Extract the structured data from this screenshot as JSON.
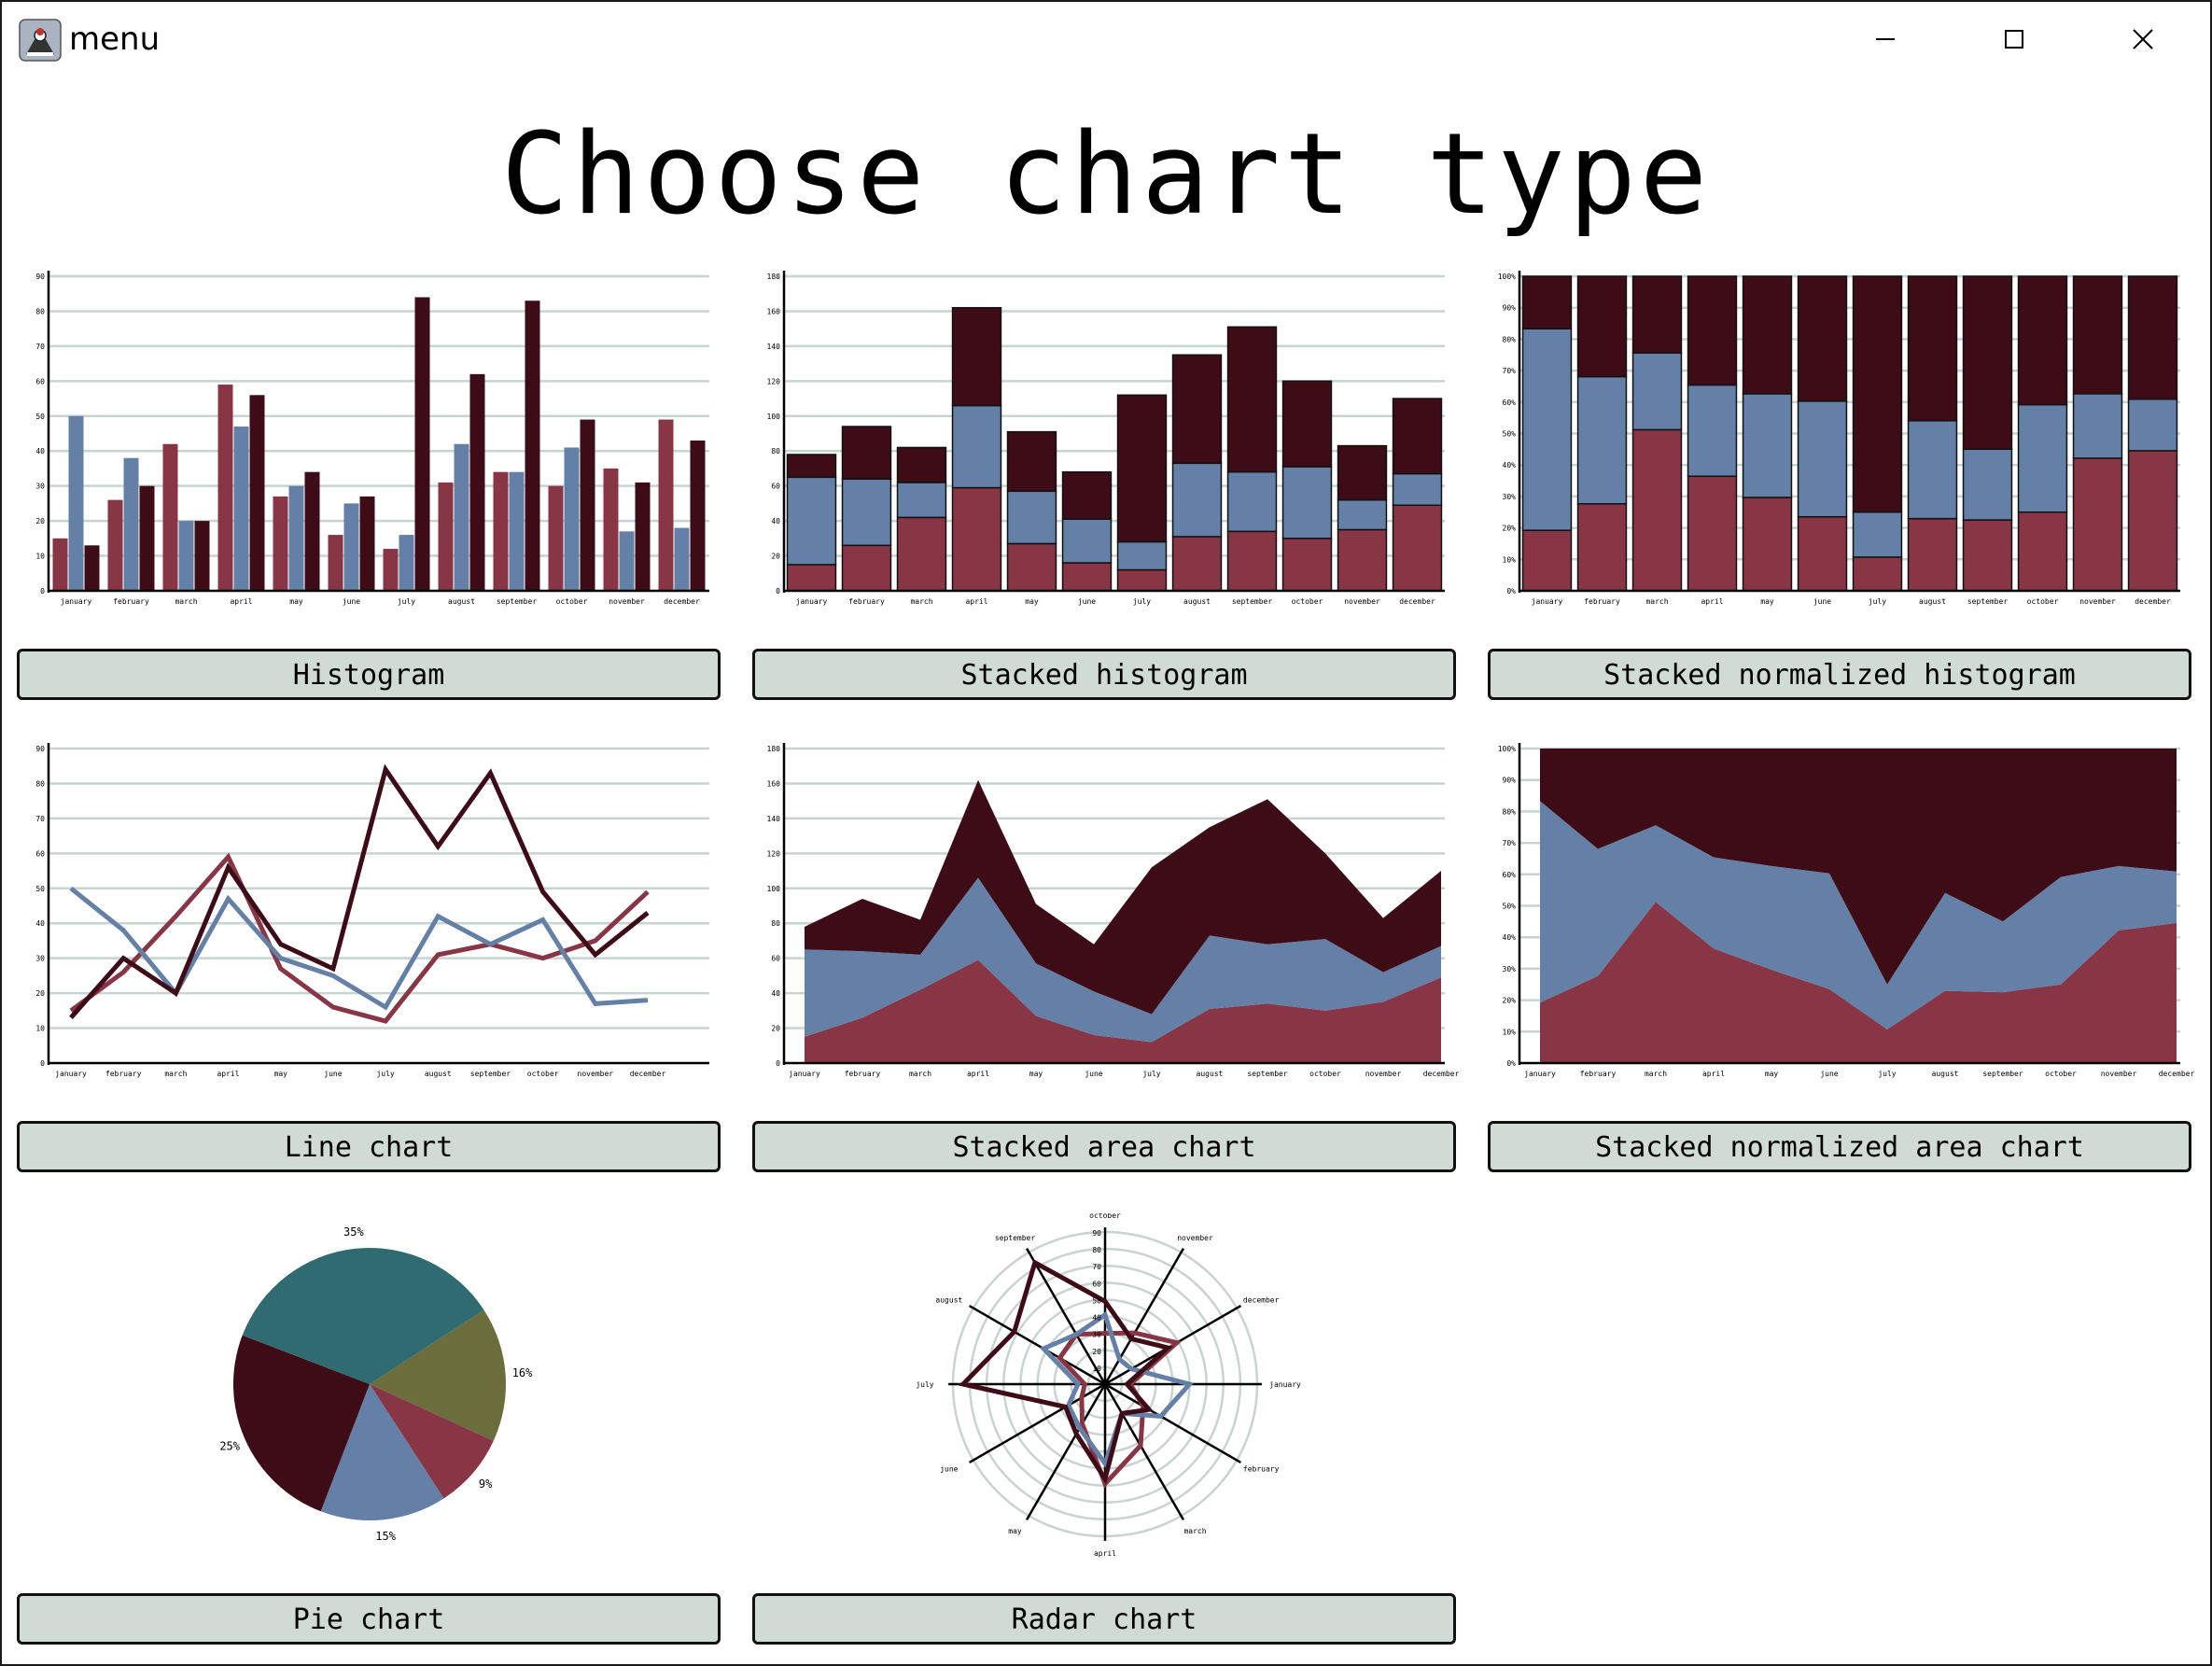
{
  "window": {
    "title": "menu"
  },
  "heading": "Choose chart type",
  "colors": {
    "series1": "#883545",
    "series2": "#6480a6",
    "series3": "#3e0c17",
    "grid": "#c8d4d0",
    "button_bg": "#d0dbd6"
  },
  "buttons": {
    "histogram": "Histogram",
    "stacked_histogram": "Stacked histogram",
    "stacked_normalized_histogram": "Stacked normalized histogram",
    "line_chart": "Line chart",
    "stacked_area_chart": "Stacked area chart",
    "stacked_normalized_area_chart": "Stacked normalized area chart",
    "pie_chart": "Pie chart",
    "radar_chart": "Radar chart"
  },
  "chart_data": [
    {
      "id": "histogram",
      "type": "bar",
      "categories": [
        "january",
        "february",
        "march",
        "april",
        "may",
        "june",
        "july",
        "august",
        "september",
        "october",
        "november",
        "december"
      ],
      "series": [
        {
          "values": [
            15,
            26,
            42,
            59,
            27,
            16,
            12,
            31,
            34,
            30,
            35,
            49
          ],
          "color": "#883545"
        },
        {
          "values": [
            50,
            38,
            20,
            47,
            30,
            25,
            16,
            42,
            34,
            41,
            17,
            18
          ],
          "color": "#6480a6"
        },
        {
          "values": [
            13,
            30,
            20,
            56,
            34,
            27,
            84,
            62,
            83,
            49,
            31,
            43
          ],
          "color": "#3e0c17"
        }
      ],
      "ylim": [
        0,
        90
      ],
      "yticks": [
        "0",
        "10",
        "20",
        "30",
        "40",
        "50",
        "60",
        "70",
        "80",
        "90"
      ],
      "grid": true
    },
    {
      "id": "stacked_histogram",
      "type": "bar",
      "categories": [
        "january",
        "february",
        "march",
        "april",
        "may",
        "june",
        "july",
        "august",
        "september",
        "october",
        "november",
        "december"
      ],
      "series": [
        {
          "values": [
            15,
            26,
            42,
            59,
            27,
            16,
            12,
            31,
            34,
            30,
            35,
            49
          ],
          "color": "#883545"
        },
        {
          "values": [
            50,
            38,
            20,
            47,
            30,
            25,
            16,
            42,
            34,
            41,
            17,
            18
          ],
          "color": "#6480a6"
        },
        {
          "values": [
            13,
            30,
            20,
            56,
            34,
            27,
            84,
            62,
            83,
            49,
            31,
            43
          ],
          "color": "#3e0c17"
        }
      ],
      "ylim": [
        0,
        180
      ],
      "yticks": [
        "0",
        "20",
        "40",
        "60",
        "80",
        "100",
        "120",
        "140",
        "160",
        "180"
      ],
      "grid": true
    },
    {
      "id": "stacked_normalized_histogram",
      "type": "bar",
      "categories": [
        "january",
        "february",
        "march",
        "april",
        "may",
        "june",
        "july",
        "august",
        "september",
        "october",
        "november",
        "december"
      ],
      "series": [
        {
          "values": [
            15,
            26,
            42,
            59,
            27,
            16,
            12,
            31,
            34,
            30,
            35,
            49
          ],
          "color": "#883545"
        },
        {
          "values": [
            50,
            38,
            20,
            47,
            30,
            25,
            16,
            42,
            34,
            41,
            17,
            18
          ],
          "color": "#6480a6"
        },
        {
          "values": [
            13,
            30,
            20,
            56,
            34,
            27,
            84,
            62,
            83,
            49,
            31,
            43
          ],
          "color": "#3e0c17"
        }
      ],
      "ylim": [
        0,
        100
      ],
      "yticks": [
        "0%",
        "10%",
        "20%",
        "30%",
        "40%",
        "50%",
        "60%",
        "70%",
        "80%",
        "90%",
        "100%"
      ],
      "grid": true
    },
    {
      "id": "line_chart",
      "type": "line",
      "categories": [
        "january",
        "february",
        "march",
        "april",
        "may",
        "june",
        "july",
        "august",
        "september",
        "october",
        "november",
        "december"
      ],
      "series": [
        {
          "values": [
            15,
            26,
            42,
            59,
            27,
            16,
            12,
            31,
            34,
            30,
            35,
            49
          ],
          "color": "#883545"
        },
        {
          "values": [
            50,
            38,
            20,
            47,
            30,
            25,
            16,
            42,
            34,
            41,
            17,
            18
          ],
          "color": "#6480a6"
        },
        {
          "values": [
            13,
            30,
            20,
            56,
            34,
            27,
            84,
            62,
            83,
            49,
            31,
            43
          ],
          "color": "#3e0c17"
        }
      ],
      "ylim": [
        0,
        90
      ],
      "yticks": [
        "0",
        "10",
        "20",
        "30",
        "40",
        "50",
        "60",
        "70",
        "80",
        "90"
      ],
      "grid": true
    },
    {
      "id": "stacked_area_chart",
      "type": "area",
      "categories": [
        "january",
        "february",
        "march",
        "april",
        "may",
        "june",
        "july",
        "august",
        "september",
        "october",
        "november",
        "december"
      ],
      "series": [
        {
          "values": [
            15,
            26,
            42,
            59,
            27,
            16,
            12,
            31,
            34,
            30,
            35,
            49
          ],
          "color": "#883545"
        },
        {
          "values": [
            50,
            38,
            20,
            47,
            30,
            25,
            16,
            42,
            34,
            41,
            17,
            18
          ],
          "color": "#6480a6"
        },
        {
          "values": [
            13,
            30,
            20,
            56,
            34,
            27,
            84,
            62,
            83,
            49,
            31,
            43
          ],
          "color": "#3e0c17"
        }
      ],
      "ylim": [
        0,
        180
      ],
      "yticks": [
        "0",
        "20",
        "40",
        "60",
        "80",
        "100",
        "120",
        "140",
        "160",
        "180"
      ],
      "grid": true
    },
    {
      "id": "stacked_normalized_area_chart",
      "type": "area",
      "categories": [
        "january",
        "february",
        "march",
        "april",
        "may",
        "june",
        "july",
        "august",
        "september",
        "october",
        "november",
        "december"
      ],
      "series": [
        {
          "values": [
            15,
            26,
            42,
            59,
            27,
            16,
            12,
            31,
            34,
            30,
            35,
            49
          ],
          "color": "#883545"
        },
        {
          "values": [
            50,
            38,
            20,
            47,
            30,
            25,
            16,
            42,
            34,
            41,
            17,
            18
          ],
          "color": "#6480a6"
        },
        {
          "values": [
            13,
            30,
            20,
            56,
            34,
            27,
            84,
            62,
            83,
            49,
            31,
            43
          ],
          "color": "#3e0c17"
        }
      ],
      "ylim": [
        0,
        100
      ],
      "yticks": [
        "0%",
        "10%",
        "20%",
        "30%",
        "40%",
        "50%",
        "60%",
        "70%",
        "80%",
        "90%",
        "100%"
      ],
      "grid": true
    },
    {
      "id": "pie_chart",
      "type": "pie",
      "slices": [
        {
          "label": "16%",
          "value": 16,
          "color": "#6b6e3c"
        },
        {
          "label": "9%",
          "value": 9,
          "color": "#883545"
        },
        {
          "label": "15%",
          "value": 15,
          "color": "#6480a6"
        },
        {
          "label": "25%",
          "value": 25,
          "color": "#3e0c17"
        },
        {
          "label": "35%",
          "value": 35,
          "color": "#2f6b70"
        }
      ]
    },
    {
      "id": "radar_chart",
      "type": "radar",
      "axes": [
        "january",
        "february",
        "march",
        "april",
        "may",
        "june",
        "july",
        "august",
        "september",
        "october",
        "november",
        "december"
      ],
      "series": [
        {
          "values": [
            15,
            26,
            42,
            59,
            27,
            16,
            12,
            31,
            34,
            30,
            35,
            49
          ],
          "color": "#883545"
        },
        {
          "values": [
            50,
            38,
            20,
            47,
            30,
            25,
            16,
            42,
            34,
            41,
            17,
            18
          ],
          "color": "#6480a6"
        },
        {
          "values": [
            13,
            30,
            20,
            56,
            34,
            27,
            84,
            62,
            83,
            49,
            31,
            43
          ],
          "color": "#3e0c17"
        }
      ],
      "rlim": [
        0,
        90
      ],
      "rticks": [
        "10",
        "20",
        "30",
        "40",
        "50",
        "60",
        "70",
        "80",
        "90"
      ]
    }
  ]
}
